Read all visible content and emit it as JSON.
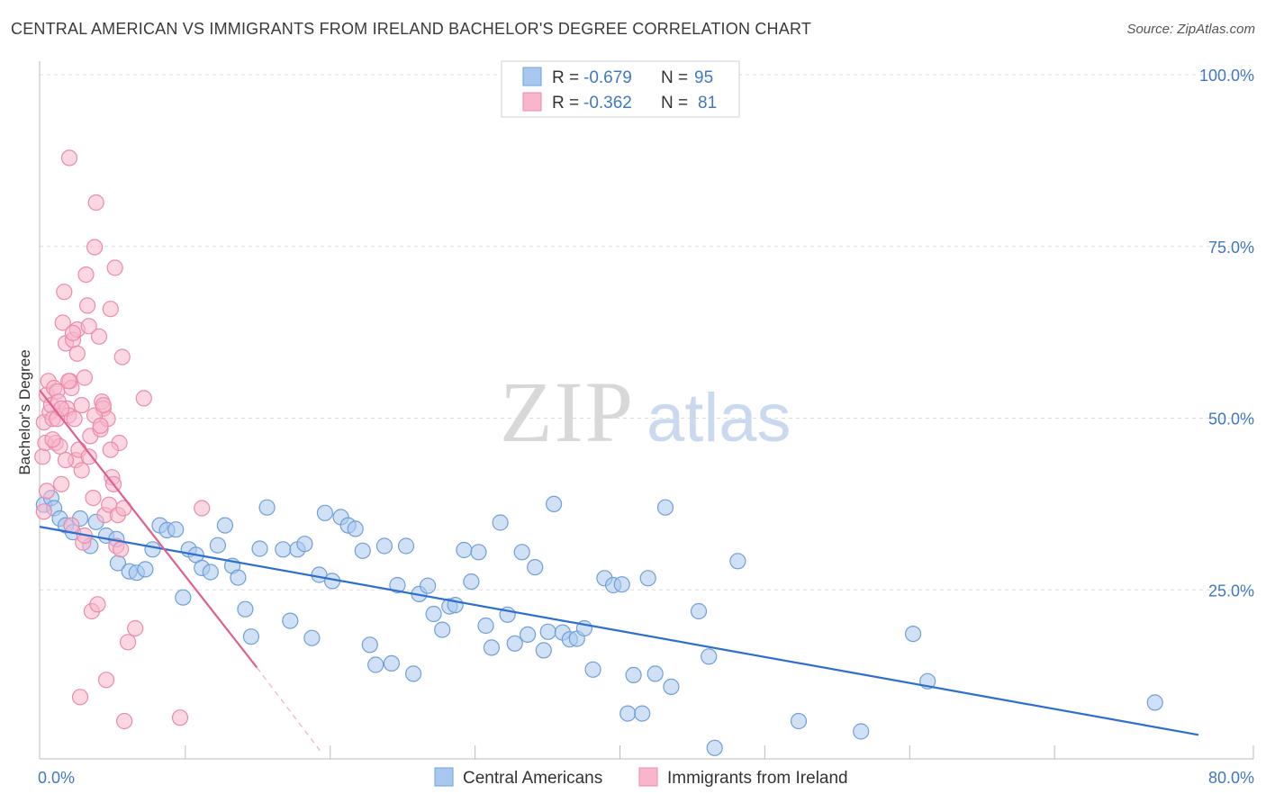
{
  "title": "CENTRAL AMERICAN VS IMMIGRANTS FROM IRELAND BACHELOR'S DEGREE CORRELATION CHART",
  "source": "Source: ZipAtlas.com",
  "watermark": {
    "zip": "ZIP",
    "atlas": "atlas"
  },
  "colors": {
    "blue_fill": "#a9c8ef",
    "blue_stroke": "#6f9fd8",
    "blue_line": "#2d6fcf",
    "pink_fill": "#f7b6cb",
    "pink_stroke": "#ec8aab",
    "pink_line": "#e0608d",
    "tick_text": "#3f78c4",
    "grid": "#dddddd"
  },
  "stats_legend": [
    {
      "r_label": "R =",
      "r_value": "-0.679",
      "n_label": "N =",
      "n_value": "95"
    },
    {
      "r_label": "R =",
      "r_value": "-0.362",
      "n_label": "N =",
      "n_value": "81"
    }
  ],
  "chart_data": {
    "type": "scatter",
    "title": "CENTRAL AMERICAN VS IMMIGRANTS FROM IRELAND BACHELOR'S DEGREE CORRELATION CHART",
    "xlabel": "",
    "ylabel": "Bachelor's Degree",
    "xlim": [
      0,
      80
    ],
    "ylim": [
      0,
      100
    ],
    "x_tick_labels": [
      "0.0%",
      "80.0%"
    ],
    "y_ticks": [
      25,
      50,
      75,
      100
    ],
    "y_tick_labels": [
      "25.0%",
      "50.0%",
      "75.0%",
      "100.0%"
    ],
    "grid": true,
    "legend_position": "top-center",
    "series": [
      {
        "name": "Central Americans",
        "color": "#a9c8ef",
        "r": -0.679,
        "n": 95,
        "trend": {
          "x": [
            0,
            80
          ],
          "y": [
            33.8,
            3.5
          ]
        },
        "points": [
          [
            0.3,
            37
          ],
          [
            0.8,
            38
          ],
          [
            1,
            36.5
          ],
          [
            1.4,
            35
          ],
          [
            1.8,
            34
          ],
          [
            2.3,
            33
          ],
          [
            2.8,
            35
          ],
          [
            3.5,
            31
          ],
          [
            3.9,
            34.5
          ],
          [
            4.6,
            32.5
          ],
          [
            5.3,
            32
          ],
          [
            5.4,
            28.5
          ],
          [
            6.2,
            27.3
          ],
          [
            6.7,
            27.1
          ],
          [
            7.3,
            27.6
          ],
          [
            7.8,
            30.5
          ],
          [
            8.3,
            34
          ],
          [
            8.8,
            33.3
          ],
          [
            9.4,
            33.4
          ],
          [
            9.9,
            23.5
          ],
          [
            10.3,
            30.5
          ],
          [
            10.8,
            29.7
          ],
          [
            11.2,
            27.8
          ],
          [
            11.8,
            27.2
          ],
          [
            12.3,
            31.1
          ],
          [
            12.8,
            34
          ],
          [
            13.3,
            28.1
          ],
          [
            13.7,
            26.4
          ],
          [
            14.2,
            21.8
          ],
          [
            14.6,
            17.8
          ],
          [
            15.2,
            30.6
          ],
          [
            15.7,
            36.6
          ],
          [
            16.8,
            30.5
          ],
          [
            17.3,
            20.1
          ],
          [
            17.8,
            30.5
          ],
          [
            18.3,
            31.3
          ],
          [
            18.8,
            17.6
          ],
          [
            19.3,
            26.8
          ],
          [
            19.7,
            35.8
          ],
          [
            20.2,
            25.9
          ],
          [
            20.8,
            35.2
          ],
          [
            21.3,
            34
          ],
          [
            21.8,
            33.5
          ],
          [
            22.3,
            30.3
          ],
          [
            22.8,
            16.6
          ],
          [
            23.2,
            13.7
          ],
          [
            23.8,
            31
          ],
          [
            24.3,
            13.9
          ],
          [
            24.7,
            25.3
          ],
          [
            25.3,
            31
          ],
          [
            25.8,
            12.4
          ],
          [
            26.2,
            24
          ],
          [
            26.8,
            25.2
          ],
          [
            27.2,
            21.1
          ],
          [
            27.8,
            18.8
          ],
          [
            28.3,
            22.2
          ],
          [
            28.7,
            22.4
          ],
          [
            29.3,
            30.4
          ],
          [
            29.8,
            25.8
          ],
          [
            30.3,
            30.1
          ],
          [
            30.8,
            19.4
          ],
          [
            31.2,
            16.2
          ],
          [
            31.8,
            34.4
          ],
          [
            32.3,
            21
          ],
          [
            32.8,
            16.8
          ],
          [
            33.3,
            30.1
          ],
          [
            33.7,
            18.1
          ],
          [
            34.2,
            27.9
          ],
          [
            34.8,
            15.8
          ],
          [
            35.1,
            18.5
          ],
          [
            35.5,
            37.1
          ],
          [
            36.1,
            18.4
          ],
          [
            36.6,
            17.4
          ],
          [
            37.1,
            17.5
          ],
          [
            37.6,
            19
          ],
          [
            38.2,
            13
          ],
          [
            39,
            26.3
          ],
          [
            39.6,
            25.3
          ],
          [
            40.2,
            25.4
          ],
          [
            40.6,
            6.6
          ],
          [
            41,
            12.2
          ],
          [
            41.6,
            6.6
          ],
          [
            42,
            26.3
          ],
          [
            42.5,
            12.4
          ],
          [
            43.2,
            36.6
          ],
          [
            43.6,
            10.5
          ],
          [
            45.5,
            21.5
          ],
          [
            46.2,
            14.9
          ],
          [
            46.6,
            1.6
          ],
          [
            48.2,
            28.8
          ],
          [
            52.4,
            5.5
          ],
          [
            56.7,
            4
          ],
          [
            60.3,
            18.2
          ],
          [
            61.3,
            11.3
          ],
          [
            77,
            8.2
          ]
        ]
      },
      {
        "name": "Immigrants from Ireland",
        "color": "#f7b6cb",
        "r": -0.362,
        "n": 81,
        "trend": {
          "x": [
            0,
            15
          ],
          "y": [
            53.7,
            13.3
          ]
        },
        "trend_dashed": {
          "x": [
            15,
            19.5
          ],
          "y": [
            13.3,
            0.8
          ]
        },
        "points": [
          [
            0.2,
            44
          ],
          [
            0.3,
            49
          ],
          [
            0.4,
            46
          ],
          [
            0.5,
            53
          ],
          [
            0.6,
            55
          ],
          [
            0.7,
            50.5
          ],
          [
            0.8,
            51.5
          ],
          [
            0.9,
            49.5
          ],
          [
            1,
            54
          ],
          [
            1.1,
            46
          ],
          [
            1.2,
            53.5
          ],
          [
            1.3,
            52
          ],
          [
            1.4,
            45.5
          ],
          [
            1.5,
            40
          ],
          [
            1.6,
            63.5
          ],
          [
            1.7,
            68
          ],
          [
            1.8,
            60.5
          ],
          [
            1.9,
            51
          ],
          [
            2,
            50
          ],
          [
            2.05,
            87.5
          ],
          [
            2.1,
            55
          ],
          [
            2.2,
            54
          ],
          [
            2.3,
            61
          ],
          [
            2.4,
            49.5
          ],
          [
            2.5,
            43.5
          ],
          [
            2.6,
            62.5
          ],
          [
            2.7,
            45
          ],
          [
            2.8,
            9
          ],
          [
            2.9,
            42
          ],
          [
            3,
            31.5
          ],
          [
            3.1,
            32.5
          ],
          [
            3.2,
            70.5
          ],
          [
            3.3,
            66
          ],
          [
            3.4,
            63
          ],
          [
            3.5,
            47
          ],
          [
            3.6,
            21.5
          ],
          [
            3.7,
            38
          ],
          [
            3.8,
            74.5
          ],
          [
            3.9,
            81
          ],
          [
            4,
            22.5
          ],
          [
            4.1,
            61.5
          ],
          [
            4.2,
            48
          ],
          [
            4.3,
            52
          ],
          [
            4.4,
            51
          ],
          [
            4.5,
            35.5
          ],
          [
            4.6,
            11.5
          ],
          [
            4.7,
            49.5
          ],
          [
            4.8,
            37
          ],
          [
            4.9,
            65.5
          ],
          [
            5,
            41
          ],
          [
            5.1,
            40
          ],
          [
            5.2,
            71.5
          ],
          [
            5.3,
            31
          ],
          [
            5.4,
            35.5
          ],
          [
            5.5,
            46
          ],
          [
            5.6,
            30.5
          ],
          [
            5.7,
            58.5
          ],
          [
            5.8,
            36.5
          ],
          [
            5.85,
            5.5
          ],
          [
            6.1,
            17
          ],
          [
            6.6,
            19
          ],
          [
            7.2,
            52.5
          ],
          [
            9.7,
            6
          ],
          [
            11.2,
            36.5
          ],
          [
            0.3,
            36
          ],
          [
            0.5,
            39
          ],
          [
            0.9,
            46.5
          ],
          [
            1.2,
            49.5
          ],
          [
            1.5,
            51
          ],
          [
            1.8,
            43.5
          ],
          [
            2,
            55
          ],
          [
            2.3,
            62
          ],
          [
            2.6,
            59
          ],
          [
            2.9,
            51.5
          ],
          [
            3.1,
            55.5
          ],
          [
            3.4,
            44
          ],
          [
            3.8,
            50
          ],
          [
            4.2,
            48.5
          ],
          [
            4.4,
            51.5
          ],
          [
            4.9,
            45
          ],
          [
            2.2,
            34
          ]
        ]
      }
    ]
  },
  "bottom_legend": [
    {
      "label": "Central Americans"
    },
    {
      "label": "Immigrants from Ireland"
    }
  ]
}
